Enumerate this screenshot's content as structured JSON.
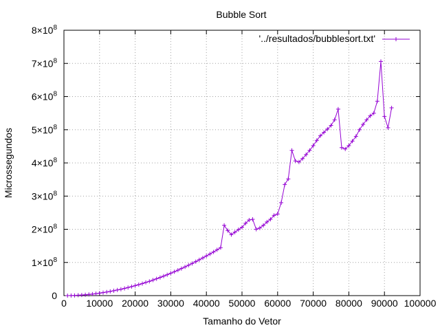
{
  "chart_data": {
    "type": "line",
    "title": "Bubble Sort",
    "xlabel": "Tamanho do Vetor",
    "ylabel": "Microssegundos",
    "xlim": [
      0,
      100000
    ],
    "ylim": [
      0,
      800000000
    ],
    "grid": true,
    "legend_position": "top-right",
    "x_ticks": [
      {
        "value": 0,
        "label": "0"
      },
      {
        "value": 10000,
        "label": "10000"
      },
      {
        "value": 20000,
        "label": "20000"
      },
      {
        "value": 30000,
        "label": "30000"
      },
      {
        "value": 40000,
        "label": "40000"
      },
      {
        "value": 50000,
        "label": "50000"
      },
      {
        "value": 60000,
        "label": "60000"
      },
      {
        "value": 70000,
        "label": "70000"
      },
      {
        "value": 80000,
        "label": "80000"
      },
      {
        "value": 90000,
        "label": "90000"
      },
      {
        "value": 100000,
        "label": "100000"
      }
    ],
    "y_ticks": [
      {
        "value": 0,
        "mant": "0",
        "exp": ""
      },
      {
        "value": 100000000,
        "mant": "1×10",
        "exp": "8"
      },
      {
        "value": 200000000,
        "mant": "2×10",
        "exp": "8"
      },
      {
        "value": 300000000,
        "mant": "3×10",
        "exp": "8"
      },
      {
        "value": 400000000,
        "mant": "4×10",
        "exp": "8"
      },
      {
        "value": 500000000,
        "mant": "5×10",
        "exp": "8"
      },
      {
        "value": 600000000,
        "mant": "6×10",
        "exp": "8"
      },
      {
        "value": 700000000,
        "mant": "7×10",
        "exp": "8"
      },
      {
        "value": 800000000,
        "mant": "8×10",
        "exp": "8"
      }
    ],
    "series": [
      {
        "name": "'../resultados/bubblesort.txt'",
        "color": "#9400d3",
        "marker": "plus",
        "points": [
          [
            1000,
            0
          ],
          [
            2000,
            300000
          ],
          [
            3000,
            700000
          ],
          [
            4000,
            1200000
          ],
          [
            5000,
            1900000
          ],
          [
            6000,
            2700000
          ],
          [
            7000,
            3700000
          ],
          [
            8000,
            4800000
          ],
          [
            9000,
            6100000
          ],
          [
            10000,
            7500000
          ],
          [
            11000,
            9100000
          ],
          [
            12000,
            10800000
          ],
          [
            13000,
            12700000
          ],
          [
            14000,
            14700000
          ],
          [
            15000,
            16900000
          ],
          [
            16000,
            19200000
          ],
          [
            17000,
            21700000
          ],
          [
            18000,
            24300000
          ],
          [
            19000,
            27100000
          ],
          [
            20000,
            30000000
          ],
          [
            21000,
            33100000
          ],
          [
            22000,
            36300000
          ],
          [
            23000,
            39700000
          ],
          [
            24000,
            43200000
          ],
          [
            25000,
            46900000
          ],
          [
            26000,
            50700000
          ],
          [
            27000,
            54700000
          ],
          [
            28000,
            58800000
          ],
          [
            29000,
            63100000
          ],
          [
            30000,
            67500000
          ],
          [
            31000,
            72000000
          ],
          [
            32000,
            76700000
          ],
          [
            33000,
            81600000
          ],
          [
            34000,
            86600000
          ],
          [
            35000,
            91700000
          ],
          [
            36000,
            97000000
          ],
          [
            37000,
            102400000
          ],
          [
            38000,
            108000000
          ],
          [
            39000,
            113700000
          ],
          [
            40000,
            119600000
          ],
          [
            41000,
            125600000
          ],
          [
            42000,
            131700000
          ],
          [
            43000,
            138000000
          ],
          [
            44000,
            144400000
          ],
          [
            45000,
            212000000
          ],
          [
            46000,
            196000000
          ],
          [
            47000,
            184000000
          ],
          [
            48000,
            191000000
          ],
          [
            49000,
            199000000
          ],
          [
            50000,
            206000000
          ],
          [
            51000,
            218000000
          ],
          [
            52000,
            228000000
          ],
          [
            53000,
            230000000
          ],
          [
            54000,
            200000000
          ],
          [
            55000,
            204000000
          ],
          [
            56000,
            212000000
          ],
          [
            57000,
            222000000
          ],
          [
            58000,
            230000000
          ],
          [
            59000,
            242000000
          ],
          [
            60000,
            246000000
          ],
          [
            61000,
            280000000
          ],
          [
            62000,
            335000000
          ],
          [
            63000,
            352000000
          ],
          [
            64000,
            438000000
          ],
          [
            65000,
            406000000
          ],
          [
            66000,
            403000000
          ],
          [
            67000,
            413000000
          ],
          [
            68000,
            425000000
          ],
          [
            69000,
            438000000
          ],
          [
            70000,
            452000000
          ],
          [
            71000,
            468000000
          ],
          [
            72000,
            482000000
          ],
          [
            73000,
            492000000
          ],
          [
            74000,
            502000000
          ],
          [
            75000,
            513000000
          ],
          [
            76000,
            530000000
          ],
          [
            77000,
            562000000
          ],
          [
            78000,
            446000000
          ],
          [
            79000,
            442000000
          ],
          [
            80000,
            452000000
          ],
          [
            81000,
            466000000
          ],
          [
            82000,
            480000000
          ],
          [
            83000,
            500000000
          ],
          [
            84000,
            516000000
          ],
          [
            85000,
            530000000
          ],
          [
            86000,
            542000000
          ],
          [
            87000,
            550000000
          ],
          [
            88000,
            586000000
          ],
          [
            89000,
            706000000
          ],
          [
            90000,
            540000000
          ],
          [
            91000,
            506000000
          ],
          [
            92000,
            566000000
          ]
        ]
      }
    ]
  }
}
